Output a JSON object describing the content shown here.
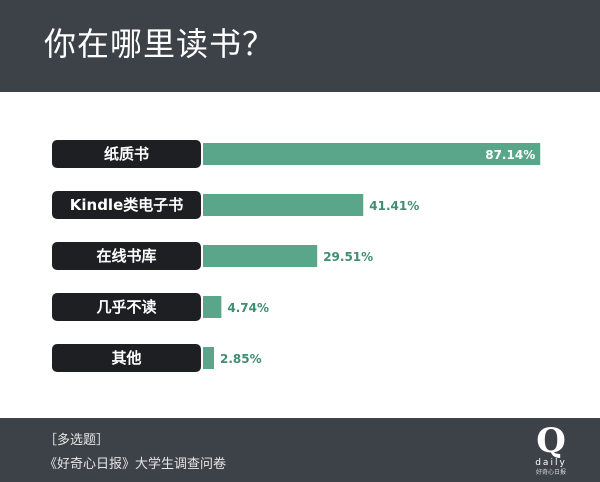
{
  "header": {
    "title": "你在哪里读书？"
  },
  "colors": {
    "header_bg": "#3d4148",
    "label_bg": "#1e1f22",
    "bar": "#5aa68a",
    "value_text": "#3f8f70",
    "value_text_inside": "#ffffff"
  },
  "chart_data": {
    "type": "bar",
    "orientation": "horizontal",
    "categories": [
      "纸质书",
      "Kindle类电子书",
      "在线书库",
      "几乎不读",
      "其他"
    ],
    "values": [
      87.14,
      41.41,
      29.51,
      4.74,
      2.85
    ],
    "value_labels": [
      "87.14%",
      "41.41%",
      "29.51%",
      "4.74%",
      "2.85%"
    ],
    "xlim": [
      0,
      100
    ],
    "grid": false,
    "legend": "none"
  },
  "footer": {
    "note": "［多选题］",
    "source": "《好奇心日报》大学生调查问卷"
  },
  "logo": {
    "letter": "Q",
    "word": "daily",
    "subtitle": "好奇心日报"
  }
}
